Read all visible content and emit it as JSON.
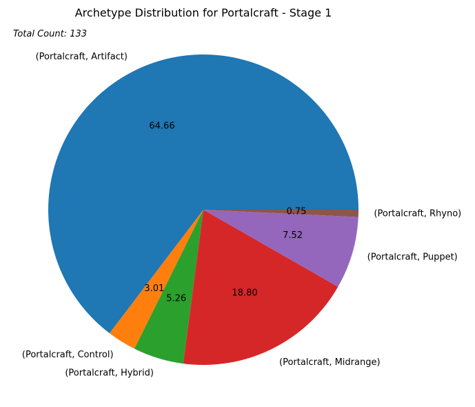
{
  "chart_data": {
    "type": "pie",
    "title": "Archetype Distribution for Portalcraft - Stage 1",
    "annotation": "Total Count: 133",
    "slices": [
      {
        "label": "(Portalcraft, Artifact)",
        "value": 64.66,
        "pct_label": "64.66",
        "color": "#1f77b4"
      },
      {
        "label": "(Portalcraft, Control)",
        "value": 3.01,
        "pct_label": "3.01",
        "color": "#ff7f0e"
      },
      {
        "label": "(Portalcraft, Hybrid)",
        "value": 5.26,
        "pct_label": "5.26",
        "color": "#2ca02c"
      },
      {
        "label": "(Portalcraft, Midrange)",
        "value": 18.8,
        "pct_label": "18.80",
        "color": "#d62728"
      },
      {
        "label": "(Portalcraft, Puppet)",
        "value": 7.52,
        "pct_label": "7.52",
        "color": "#9467bd"
      },
      {
        "label": "(Portalcraft, Rhyno)",
        "value": 0.75,
        "pct_label": "0.75",
        "color": "#8c564b"
      }
    ],
    "start_angle_deg": 0,
    "direction": "counterclockwise",
    "legend": "none"
  }
}
